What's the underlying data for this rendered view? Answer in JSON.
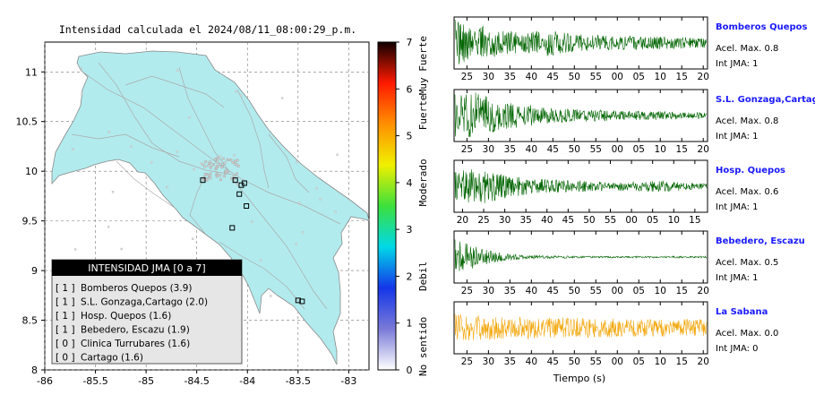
{
  "map": {
    "title": "Intensidad calculada el 2024/08/11_08:00:29_p.m.",
    "x_ticks": [
      "-86",
      "-85.5",
      "-85",
      "-84.5",
      "-84",
      "-83.5",
      "-83"
    ],
    "y_ticks": [
      "11",
      "10.5",
      "10",
      "9.5",
      "9",
      "8.5",
      "8"
    ],
    "xlim": [
      -86,
      -82.8
    ],
    "ylim": [
      8,
      11.3
    ],
    "land_color": "#b2ebee",
    "stations": [
      {
        "lon": -84.44,
        "lat": 9.91
      },
      {
        "lon": -84.12,
        "lat": 9.91
      },
      {
        "lon": -84.06,
        "lat": 9.86
      },
      {
        "lon": -84.03,
        "lat": 9.88
      },
      {
        "lon": -84.08,
        "lat": 9.77
      },
      {
        "lon": -84.01,
        "lat": 9.65
      },
      {
        "lon": -84.15,
        "lat": 9.43
      },
      {
        "lon": -83.5,
        "lat": 8.7
      },
      {
        "lon": -83.46,
        "lat": 8.69
      }
    ]
  },
  "colorbar": {
    "ticks": [
      "0",
      "1",
      "2",
      "3",
      "4",
      "5",
      "6",
      "7"
    ],
    "category_labels": [
      "No sentido",
      "Debil",
      "Moderado",
      "Fuerte",
      "Muy Fuerte"
    ],
    "colors": [
      "#ffffff",
      "#7a7ad8",
      "#1436e8",
      "#00d8e8",
      "#3ce03c",
      "#f0f000",
      "#ff9000",
      "#ff1a00",
      "#100000"
    ]
  },
  "legend": {
    "title": "INTENSIDAD JMA [0 a 7]",
    "entries": [
      {
        "level": "[ 1 ]",
        "name": "Bomberos Quepos (3.9)"
      },
      {
        "level": "[ 1 ]",
        "name": "S.L. Gonzaga,Cartago (2.0)"
      },
      {
        "level": "[ 1 ]",
        "name": "Hosp. Quepos (1.6)"
      },
      {
        "level": "[ 1 ]",
        "name": "Bebedero, Escazu (1.9)"
      },
      {
        "level": "[ 0 ]",
        "name": "Clinica Turrubares (1.6)"
      },
      {
        "level": "[ 0 ]",
        "name": "Cartago (1.6)"
      }
    ]
  },
  "chart_data": [
    {
      "type": "line",
      "station": "Bomberos Quepos",
      "accel_label": "Acel. Max. 0.8",
      "int_label": "Int JMA: 1",
      "x_ticks": [
        "25",
        "30",
        "35",
        "40",
        "45",
        "50",
        "55",
        "00",
        "05",
        "10",
        "15",
        "20"
      ],
      "tick_start": 25,
      "xlim": [
        22,
        81
      ],
      "line_color": "#006400",
      "amplitude": 1.0,
      "envelope": [
        1.0,
        0.8,
        0.55,
        0.45,
        0.6,
        0.4,
        0.35,
        0.3,
        0.3,
        0.28,
        0.25,
        0.2
      ]
    },
    {
      "type": "line",
      "station": "S.L. Gonzaga,Cartago",
      "accel_label": "Acel. Max. 0.8",
      "int_label": "Int JMA: 1",
      "x_ticks": [
        "25",
        "30",
        "35",
        "40",
        "45",
        "50",
        "55",
        "00",
        "05",
        "10",
        "15",
        "20"
      ],
      "tick_start": 25,
      "xlim": [
        22,
        81
      ],
      "line_color": "#006400",
      "amplitude": 1.0,
      "envelope": [
        0.9,
        1.0,
        0.6,
        0.5,
        0.35,
        0.28,
        0.25,
        0.22,
        0.2,
        0.18,
        0.15,
        0.12
      ]
    },
    {
      "type": "line",
      "station": "Hosp. Quepos",
      "accel_label": "Acel. Max. 0.6",
      "int_label": "Int JMA: 1",
      "x_ticks": [
        "20",
        "25",
        "30",
        "35",
        "40",
        "45",
        "50",
        "55",
        "00",
        "05",
        "10",
        "15"
      ],
      "tick_start": 20,
      "xlim": [
        18,
        78
      ],
      "line_color": "#006400",
      "amplitude": 0.85,
      "envelope": [
        0.7,
        1.0,
        0.65,
        0.45,
        0.35,
        0.3,
        0.28,
        0.22,
        0.25,
        0.3,
        0.2,
        0.15
      ]
    },
    {
      "type": "line",
      "station": "Bebedero, Escazu",
      "accel_label": "Acel. Max. 0.5",
      "int_label": "Int JMA: 1",
      "x_ticks": [
        "25",
        "30",
        "35",
        "40",
        "45",
        "50",
        "55",
        "00",
        "05",
        "10",
        "15",
        "20"
      ],
      "tick_start": 25,
      "xlim": [
        22,
        81
      ],
      "line_color": "#006400",
      "amplitude": 0.75,
      "envelope": [
        1.0,
        0.55,
        0.25,
        0.12,
        0.08,
        0.06,
        0.05,
        0.05,
        0.05,
        0.05,
        0.05,
        0.05
      ]
    },
    {
      "type": "line",
      "station": "La Sabana",
      "accel_label": "Acel. Max. 0.0",
      "int_label": "Int JMA: 0",
      "x_ticks": [
        "25",
        "30",
        "35",
        "40",
        "45",
        "50",
        "55",
        "00",
        "05",
        "10",
        "15",
        "20"
      ],
      "tick_start": 25,
      "xlim": [
        22,
        81
      ],
      "line_color": "#f2a60a",
      "amplitude": 0.75,
      "envelope": [
        0.8,
        0.75,
        0.7,
        0.65,
        0.6,
        0.6,
        0.55,
        0.55,
        0.5,
        0.5,
        0.5,
        0.5
      ]
    }
  ],
  "xlabel": "Tiempo (s)"
}
